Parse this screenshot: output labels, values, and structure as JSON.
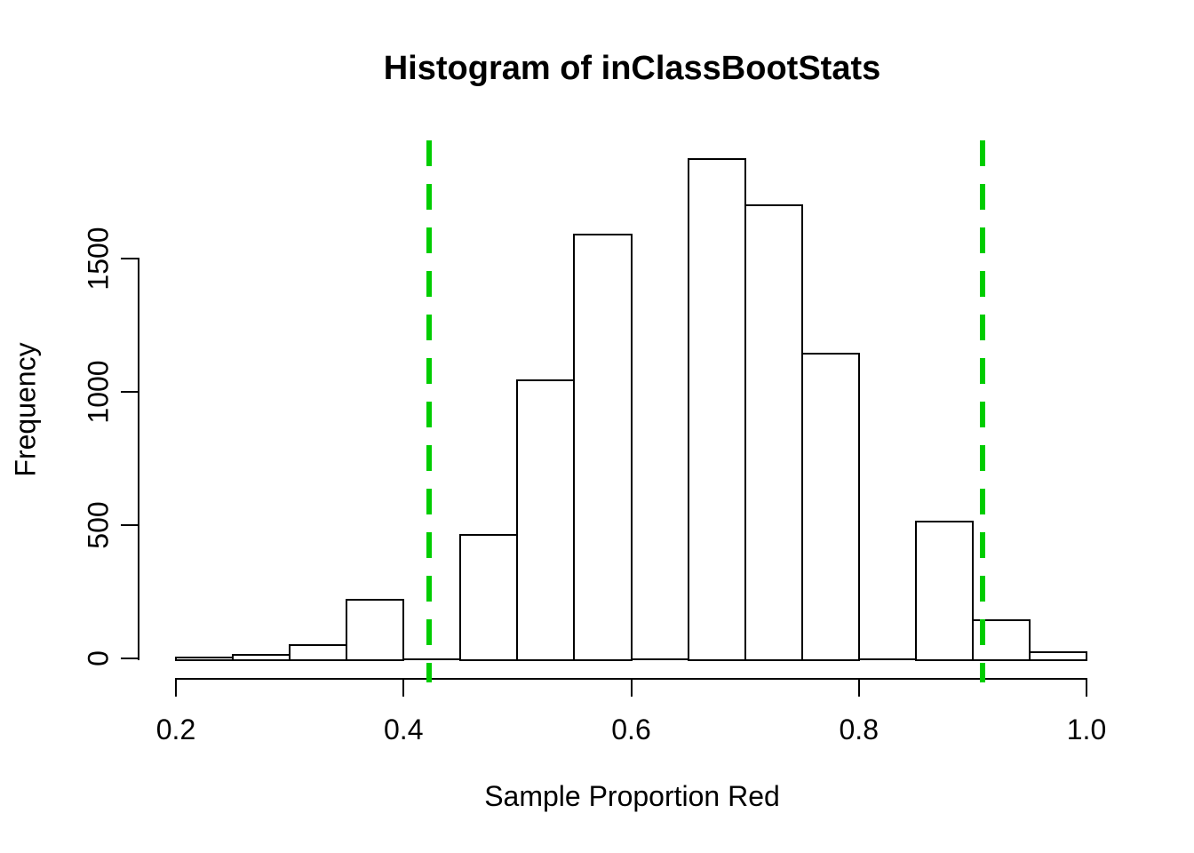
{
  "chart_data": {
    "type": "bar",
    "subtype": "histogram",
    "title": "Histogram of inClassBootStats",
    "xlabel": "Sample Proportion Red",
    "ylabel": "Frequency",
    "xlim": [
      0.2,
      1.0
    ],
    "ylim": [
      0,
      1900
    ],
    "grid": false,
    "legend": false,
    "bar_fill": "#ffffff",
    "bar_border": "#000000",
    "axis_color": "#000000",
    "bins": {
      "width": 0.05,
      "starts": [
        0.2,
        0.25,
        0.3,
        0.35,
        0.4,
        0.45,
        0.5,
        0.55,
        0.6,
        0.65,
        0.7,
        0.75,
        0.8,
        0.85,
        0.9,
        0.95
      ],
      "counts": [
        5,
        15,
        50,
        220,
        0,
        465,
        1045,
        1590,
        0,
        1875,
        1700,
        1145,
        0,
        515,
        145,
        25
      ]
    },
    "x_ticks": {
      "values": [
        0.2,
        0.4,
        0.6,
        0.8,
        1.0
      ],
      "labels": [
        "0.2",
        "0.4",
        "0.6",
        "0.8",
        "1.0"
      ]
    },
    "y_ticks": {
      "values": [
        0,
        500,
        1000,
        1500
      ],
      "labels": [
        "0",
        "500",
        "1000",
        "1500"
      ]
    },
    "vlines": {
      "color": "#00CD00",
      "style": "dashed",
      "values": [
        0.4225,
        0.9088
      ],
      "names": [
        "lower-bound-line",
        "upper-bound-line"
      ]
    }
  }
}
